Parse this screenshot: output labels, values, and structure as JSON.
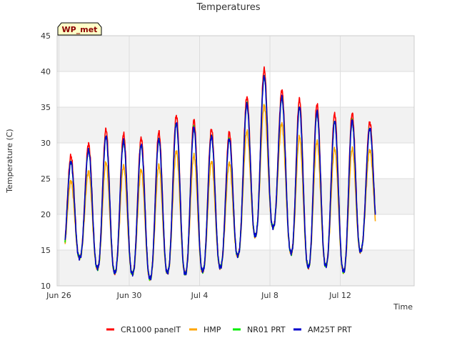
{
  "chart_data": {
    "type": "line",
    "title": "Temperatures",
    "xlabel": "Time",
    "ylabel": "Temperature (C)",
    "badge": "WP_met",
    "ylim": [
      10,
      45
    ],
    "xlim_days": [
      -0.1,
      20.2
    ],
    "yticks": [
      10,
      15,
      20,
      25,
      30,
      35,
      40,
      45
    ],
    "xticks": [
      {
        "day": 0,
        "label": "Jun 26"
      },
      {
        "day": 4,
        "label": "Jun 30"
      },
      {
        "day": 8,
        "label": "Jul 4"
      },
      {
        "day": 12,
        "label": "Jul 8"
      },
      {
        "day": 16,
        "label": "Jul 12"
      }
    ],
    "bands": [
      [
        10,
        15
      ],
      [
        20,
        25
      ],
      [
        30,
        35
      ],
      [
        40,
        45
      ]
    ],
    "daily": {
      "days": [
        0.5,
        1.5,
        2.5,
        3.5,
        4.5,
        5.5,
        6.5,
        7.5,
        8.5,
        9.5,
        10.5,
        11.5,
        12.5,
        13.5,
        14.5,
        15.5,
        16.5,
        17.5
      ],
      "lows": [
        13.8,
        14.0,
        11.8,
        11.9,
        11.6,
        10.8,
        12.4,
        11.4,
        12.4,
        12.7,
        15.0,
        18.0,
        18.3,
        13.0,
        12.5,
        13.0,
        11.6,
        16.5
      ],
      "highs": [
        27.5,
        29.0,
        31.6,
        31.0,
        30.2,
        30.6,
        33.5,
        33.0,
        31.8,
        30.2,
        35.0,
        40.5,
        37.2,
        35.8,
        35.3,
        33.6,
        34.0,
        32.5
      ]
    },
    "series": [
      {
        "name": "CR1000 panelT",
        "color": "#ff0000",
        "peak_offset": 0.4,
        "amp_scale": 1.0
      },
      {
        "name": "HMP",
        "color": "#ffa500",
        "peak_offset": -0.3,
        "amp_scale": 0.8
      },
      {
        "name": "NR01 PRT",
        "color": "#00ee00",
        "peak_offset": 0.0,
        "amp_scale": 0.97
      },
      {
        "name": "AM25T PRT",
        "color": "#0000cc",
        "peak_offset": 0.0,
        "amp_scale": 0.97
      }
    ]
  }
}
